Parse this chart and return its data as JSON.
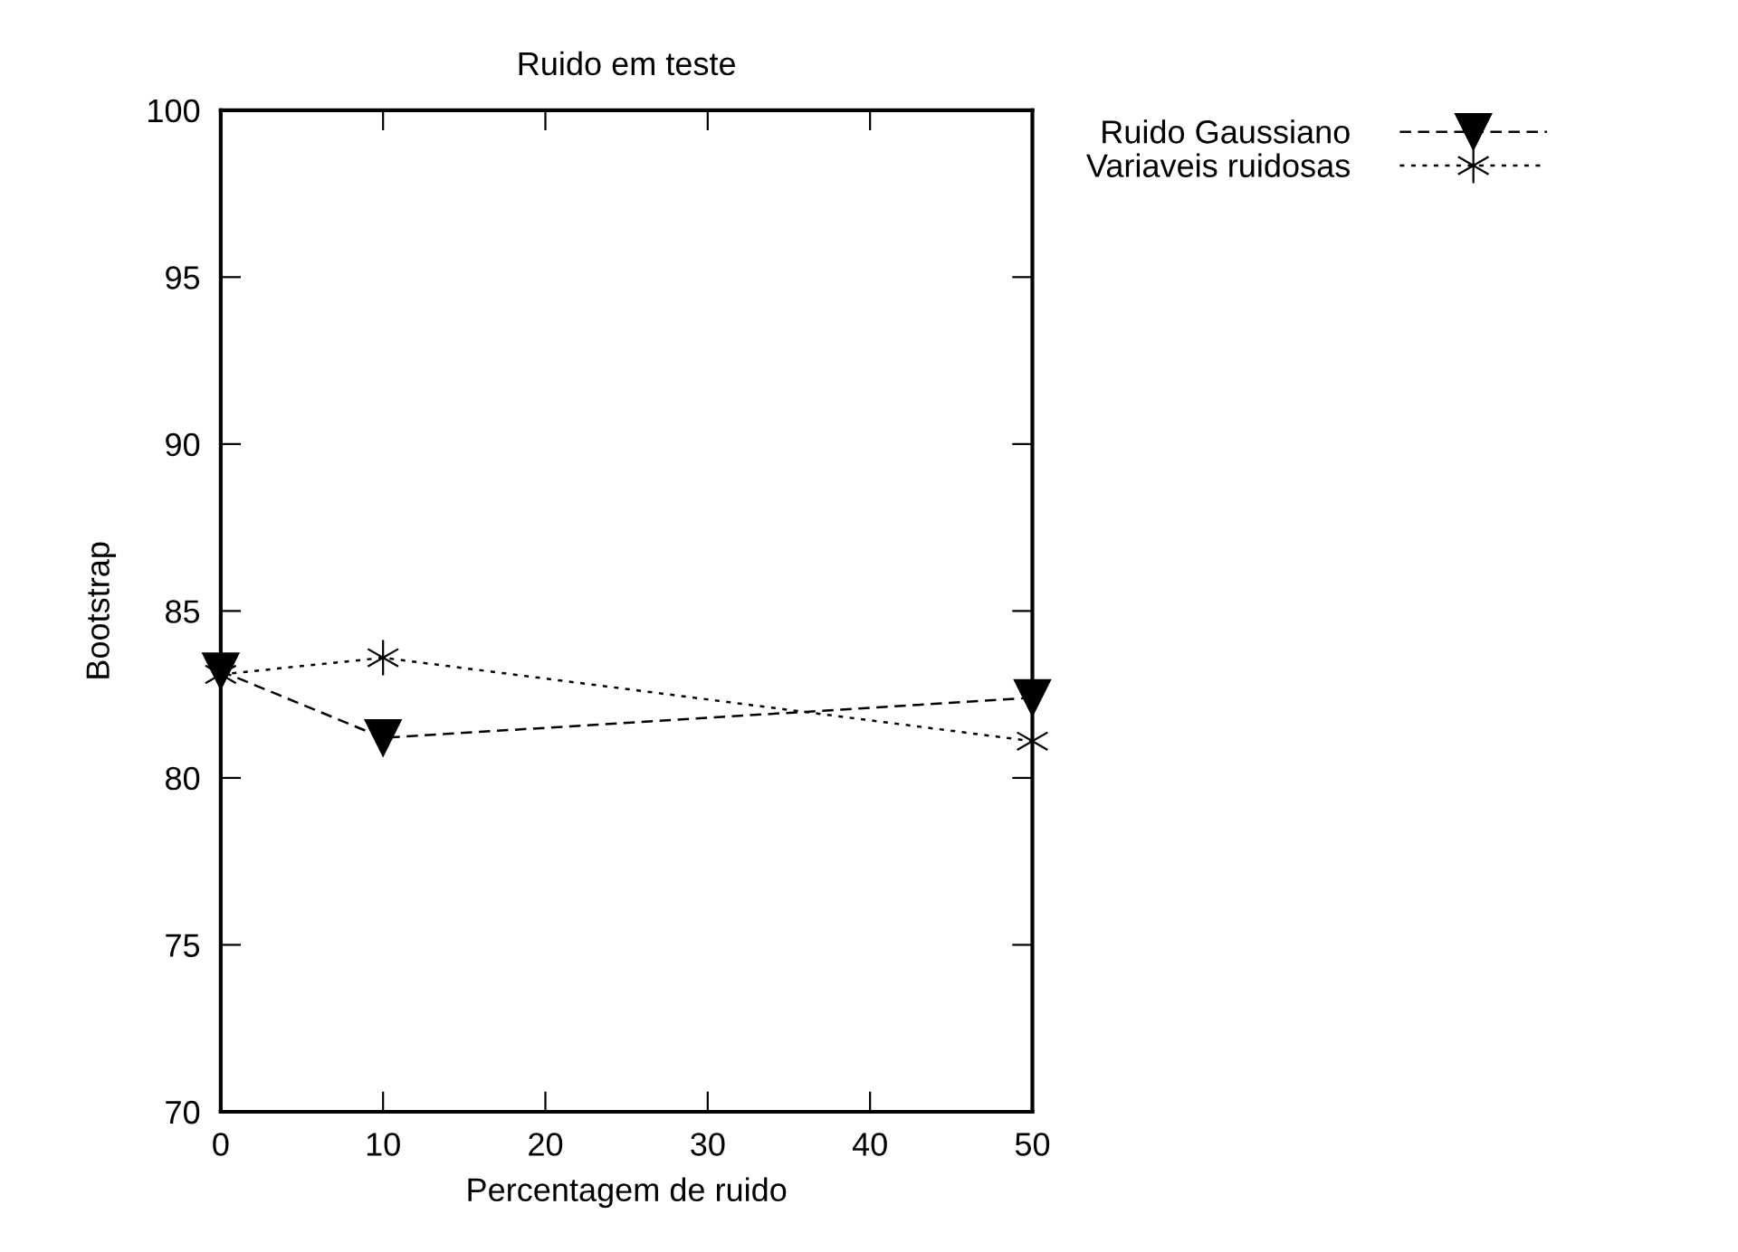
{
  "chart_data": {
    "type": "line",
    "title": "Ruido em teste",
    "xlabel": "Percentagem de ruido",
    "ylabel": "Bootstrap",
    "x": [
      0,
      10,
      50
    ],
    "series": [
      {
        "name": "Ruido Gaussiano",
        "color": "#000000",
        "values": [
          83.2,
          81.2,
          82.4
        ],
        "marker": "triangle",
        "line_style": "dashed"
      },
      {
        "name": "Variaveis ruidosas",
        "color": "#000000",
        "values": [
          83.1,
          83.6,
          81.1
        ],
        "marker": "cross",
        "line_style": "dotted"
      }
    ],
    "xlim": [
      0,
      50
    ],
    "xticks": [
      0,
      10,
      20,
      30,
      40,
      50
    ],
    "ylim": [
      70,
      100
    ],
    "yticks": [
      70,
      75,
      80,
      85,
      90,
      95,
      100
    ],
    "grid": false,
    "legend": "top right"
  }
}
